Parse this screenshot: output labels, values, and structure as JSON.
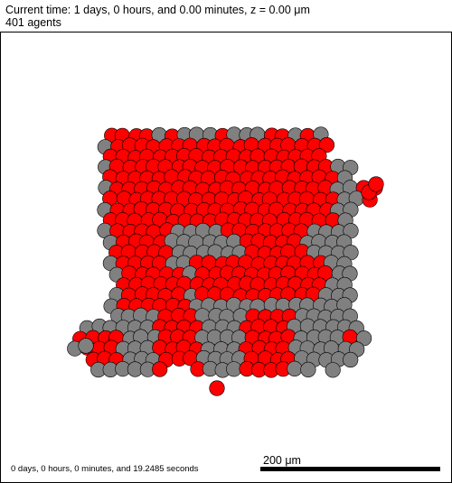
{
  "header": {
    "title": "Current time: 1 days, 0 hours, and 0.00 minutes, z = 0.00 μm",
    "agent_count": "401 agents"
  },
  "footer": {
    "elapsed": "0 days, 0 hours, 0 minutes, and 19.2485 seconds",
    "scale_label": "200 μm"
  },
  "colors": {
    "cell_gray": "#808080",
    "cell_red": "#ff0000",
    "outline": "#000000",
    "background": "#ffffff",
    "scale_bar": "#000000"
  }
}
